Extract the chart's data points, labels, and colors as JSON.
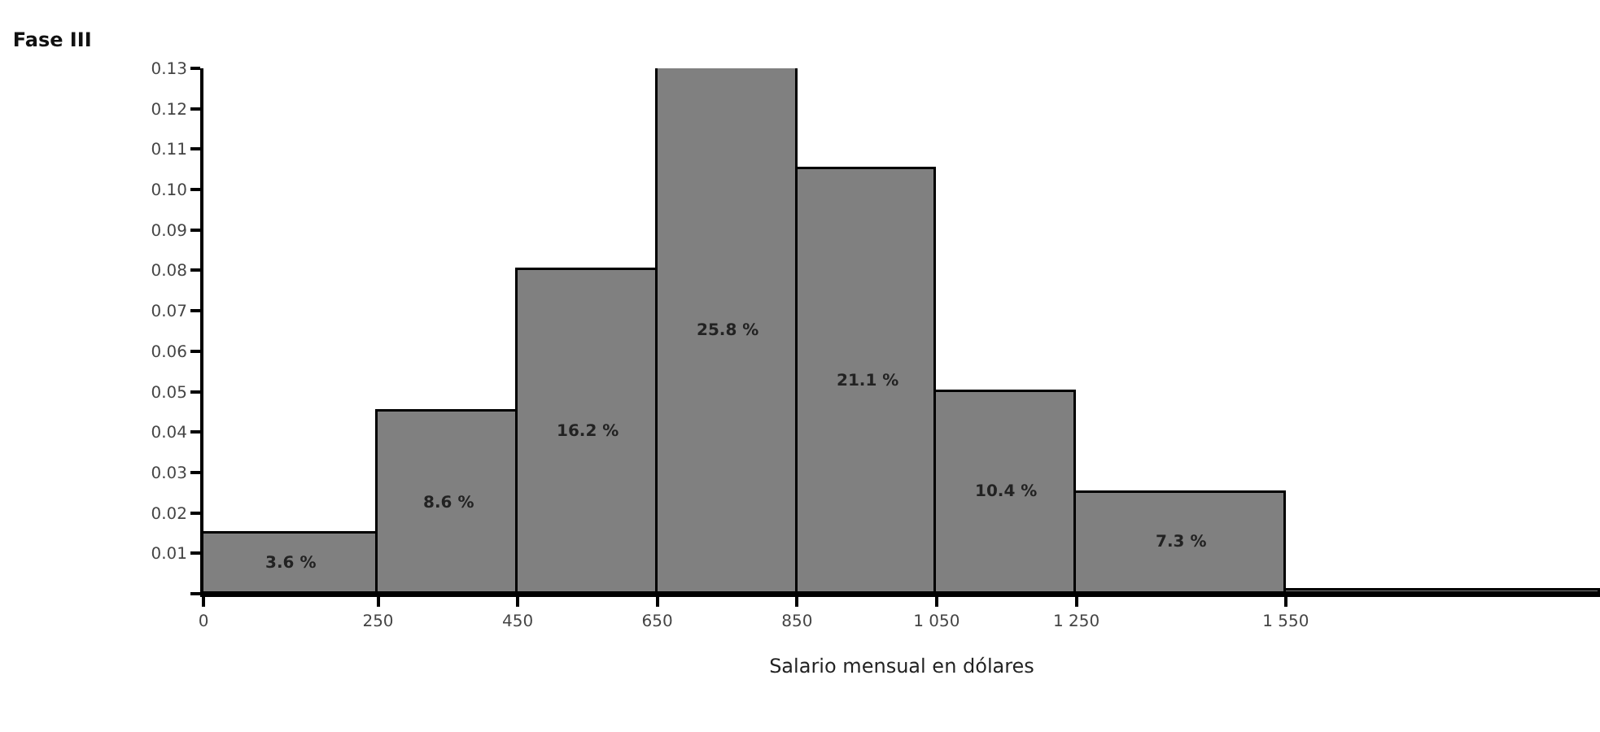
{
  "chart_data": {
    "type": "histogram",
    "title": "Fase III",
    "xlabel": "Salario mensual en dólares",
    "bins": [
      0,
      250,
      450,
      650,
      850,
      1050,
      1250,
      1550,
      2000
    ],
    "values": [
      0.015,
      0.045,
      0.08,
      0.13,
      0.105,
      0.05,
      0.025,
      0.001
    ],
    "annotations": [
      "3.6 %",
      "8.6 %",
      "16.2 %",
      "25.8 %",
      "21.1 %",
      "10.4 %",
      "7.3 %"
    ],
    "color": "#808080",
    "xlim": [
      0,
      2000
    ],
    "xticks": [
      0,
      250,
      450,
      650,
      850,
      {
        "value": 1050,
        "label": "1 050"
      },
      {
        "value": 1250,
        "label": "1 250"
      },
      {
        "value": 1550,
        "label": "1 550"
      }
    ],
    "ylim": [
      0,
      0.13
    ],
    "yticks": [
      {
        "value": 0,
        "label": null
      },
      0.01,
      0.02,
      0.03,
      0.04,
      0.05,
      0.06,
      0.07,
      0.08,
      0.09,
      {
        "value": 0.1,
        "label": "0.10"
      },
      0.11,
      0.12,
      0.13
    ],
    "grid": false
  }
}
